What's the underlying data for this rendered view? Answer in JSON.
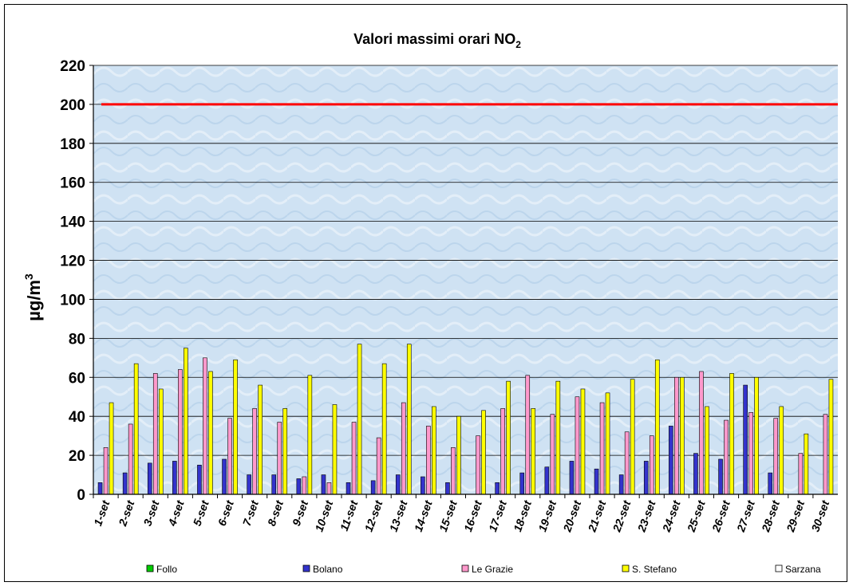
{
  "chart_data": {
    "type": "bar",
    "title": "Valori massimi orari NO",
    "title_subscript": "2",
    "ylabel": "µg/m",
    "ylabel_superscript": "3",
    "xlabel": "",
    "ylim": [
      0,
      220
    ],
    "yticks": [
      0,
      20,
      40,
      60,
      80,
      100,
      120,
      140,
      160,
      180,
      200,
      220
    ],
    "grid": true,
    "legend_position": "bottom",
    "limit_line": {
      "value": 200,
      "color": "#ff0000"
    },
    "categories": [
      "1-set",
      "2-set",
      "3-set",
      "4-set",
      "5-set",
      "6-set",
      "7-set",
      "8-set",
      "9-set",
      "10-set",
      "11-set",
      "12-set",
      "13-set",
      "14-set",
      "15-set",
      "16-set",
      "17-set",
      "18-set",
      "19-set",
      "20-set",
      "21-set",
      "22-set",
      "23-set",
      "24-set",
      "25-set",
      "26-set",
      "27-set",
      "28-set",
      "29-set",
      "30-set"
    ],
    "series": [
      {
        "name": "Follo",
        "color": "#00cc00",
        "values": [
          null,
          null,
          null,
          null,
          null,
          null,
          null,
          null,
          null,
          null,
          null,
          null,
          null,
          null,
          null,
          null,
          null,
          null,
          null,
          null,
          null,
          null,
          null,
          null,
          null,
          null,
          null,
          null,
          null,
          null
        ]
      },
      {
        "name": "Bolano",
        "color": "#3333cc",
        "values": [
          6,
          11,
          16,
          17,
          15,
          18,
          10,
          10,
          8,
          10,
          6,
          7,
          10,
          9,
          6,
          null,
          6,
          11,
          14,
          17,
          13,
          10,
          17,
          35,
          21,
          18,
          56,
          11,
          null,
          null
        ]
      },
      {
        "name": "Le Grazie",
        "color": "#ff99cc",
        "values": [
          24,
          36,
          62,
          64,
          70,
          39,
          44,
          37,
          9,
          6,
          37,
          29,
          47,
          35,
          24,
          30,
          44,
          61,
          41,
          50,
          47,
          32,
          30,
          60,
          63,
          38,
          42,
          39,
          21,
          41
        ]
      },
      {
        "name": "S. Stefano",
        "color": "#ffff00",
        "values": [
          47,
          67,
          54,
          75,
          63,
          69,
          56,
          44,
          61,
          46,
          77,
          67,
          77,
          45,
          40,
          43,
          58,
          44,
          58,
          54,
          52,
          59,
          69,
          60,
          45,
          62,
          60,
          45,
          31,
          59
        ]
      },
      {
        "name": "Sarzana",
        "color": "#ffffff",
        "values": [
          null,
          null,
          null,
          null,
          null,
          null,
          null,
          null,
          null,
          null,
          null,
          null,
          null,
          null,
          null,
          null,
          null,
          null,
          null,
          null,
          null,
          null,
          null,
          null,
          null,
          null,
          null,
          null,
          null,
          null
        ]
      }
    ]
  }
}
